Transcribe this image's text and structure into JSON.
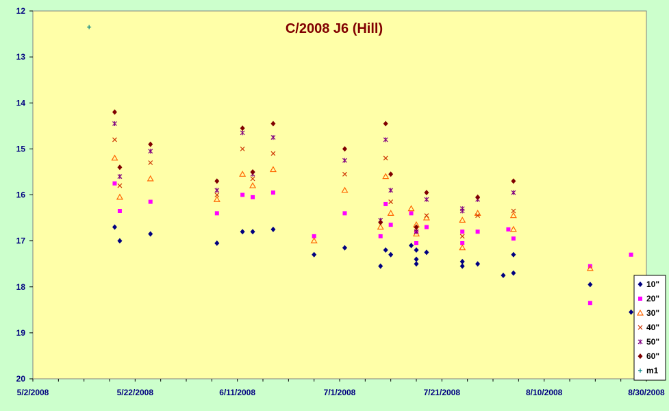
{
  "chart_data": {
    "type": "scatter",
    "title": "C/2008 J6 (Hill)",
    "xlabel": "",
    "ylabel": "",
    "x_ticks": [
      "5/2/2008",
      "5/22/2008",
      "6/11/2008",
      "7/1/2008",
      "7/21/2008",
      "8/10/2008",
      "8/30/2008"
    ],
    "xlim": [
      "2008-05-02",
      "2008-08-30"
    ],
    "ylim": [
      12,
      20
    ],
    "y_reversed": true,
    "y_ticks": [
      12,
      13,
      14,
      15,
      16,
      17,
      18,
      19,
      20
    ],
    "grid": false,
    "legend_position": "right-bottom",
    "plot_background": "#ffffa8",
    "series": [
      {
        "name": "10\"",
        "marker": "diamond",
        "color": "#000080",
        "x": [
          "2008-05-18",
          "2008-05-19",
          "2008-05-25",
          "2008-06-07",
          "2008-06-12",
          "2008-06-14",
          "2008-06-18",
          "2008-06-26",
          "2008-07-02",
          "2008-07-09",
          "2008-07-10",
          "2008-07-11",
          "2008-07-15",
          "2008-07-16",
          "2008-07-16",
          "2008-07-16",
          "2008-07-18",
          "2008-07-25",
          "2008-07-25",
          "2008-07-28",
          "2008-08-02",
          "2008-08-04",
          "2008-08-04",
          "2008-08-19",
          "2008-08-27"
        ],
        "y": [
          16.7,
          17.0,
          16.85,
          17.05,
          16.8,
          16.8,
          16.75,
          17.3,
          17.15,
          17.55,
          17.2,
          17.3,
          17.1,
          17.2,
          17.4,
          17.5,
          17.25,
          17.55,
          17.45,
          17.5,
          17.75,
          17.3,
          17.7,
          17.95,
          18.55
        ]
      },
      {
        "name": "20\"",
        "marker": "square",
        "color": "#ff00ff",
        "x": [
          "2008-05-18",
          "2008-05-19",
          "2008-05-25",
          "2008-06-07",
          "2008-06-12",
          "2008-06-14",
          "2008-06-18",
          "2008-06-26",
          "2008-07-02",
          "2008-07-09",
          "2008-07-10",
          "2008-07-11",
          "2008-07-15",
          "2008-07-16",
          "2008-07-16",
          "2008-07-18",
          "2008-07-25",
          "2008-07-25",
          "2008-07-28",
          "2008-08-03",
          "2008-08-04",
          "2008-08-19",
          "2008-08-19",
          "2008-08-27"
        ],
        "y": [
          15.75,
          16.35,
          16.15,
          16.4,
          16.0,
          16.05,
          15.95,
          16.9,
          16.4,
          16.9,
          16.2,
          16.65,
          16.4,
          16.8,
          17.05,
          16.7,
          17.05,
          16.8,
          16.8,
          16.75,
          16.95,
          17.55,
          18.35,
          17.3
        ]
      },
      {
        "name": "30\"",
        "marker": "triangle",
        "color": "#ff6600",
        "x": [
          "2008-05-18",
          "2008-05-19",
          "2008-05-25",
          "2008-06-07",
          "2008-06-12",
          "2008-06-14",
          "2008-06-18",
          "2008-06-26",
          "2008-07-02",
          "2008-07-09",
          "2008-07-10",
          "2008-07-11",
          "2008-07-15",
          "2008-07-16",
          "2008-07-16",
          "2008-07-18",
          "2008-07-25",
          "2008-07-25",
          "2008-07-28",
          "2008-08-04",
          "2008-08-04",
          "2008-08-19"
        ],
        "y": [
          15.2,
          16.05,
          15.65,
          16.1,
          15.55,
          15.8,
          15.45,
          17.0,
          15.9,
          16.7,
          15.6,
          16.4,
          16.3,
          16.65,
          16.85,
          16.5,
          16.55,
          17.15,
          16.4,
          16.45,
          16.75,
          17.6
        ]
      },
      {
        "name": "40\"",
        "marker": "x",
        "color": "#cc3300",
        "x": [
          "2008-05-18",
          "2008-05-19",
          "2008-05-25",
          "2008-06-07",
          "2008-06-12",
          "2008-06-14",
          "2008-06-18",
          "2008-07-02",
          "2008-07-10",
          "2008-07-11",
          "2008-07-16",
          "2008-07-18",
          "2008-07-25",
          "2008-07-28",
          "2008-08-04"
        ],
        "y": [
          14.8,
          15.8,
          15.3,
          16.0,
          15.0,
          15.65,
          15.1,
          15.55,
          15.2,
          16.15,
          16.75,
          16.45,
          16.9,
          16.45,
          16.35
        ]
      },
      {
        "name": "50\"",
        "marker": "star",
        "color": "#800080",
        "x": [
          "2008-05-18",
          "2008-05-19",
          "2008-05-25",
          "2008-06-07",
          "2008-06-12",
          "2008-06-14",
          "2008-06-18",
          "2008-07-02",
          "2008-07-09",
          "2008-07-10",
          "2008-07-11",
          "2008-07-16",
          "2008-07-18",
          "2008-07-25",
          "2008-07-25",
          "2008-07-28",
          "2008-08-04"
        ],
        "y": [
          14.45,
          15.6,
          15.05,
          15.9,
          14.65,
          15.55,
          14.75,
          15.25,
          16.55,
          14.8,
          15.9,
          16.8,
          16.1,
          16.3,
          16.35,
          16.1,
          15.95
        ]
      },
      {
        "name": "60\"",
        "marker": "diamond",
        "color": "#800000",
        "x": [
          "2008-05-18",
          "2008-05-19",
          "2008-05-25",
          "2008-06-07",
          "2008-06-12",
          "2008-06-14",
          "2008-06-18",
          "2008-07-02",
          "2008-07-09",
          "2008-07-10",
          "2008-07-11",
          "2008-07-16",
          "2008-07-18",
          "2008-07-28",
          "2008-08-04"
        ],
        "y": [
          14.2,
          15.4,
          14.9,
          15.7,
          14.55,
          15.5,
          14.45,
          15.0,
          16.6,
          14.45,
          15.55,
          16.7,
          15.95,
          16.05,
          15.7
        ]
      },
      {
        "name": "m1",
        "marker": "plus",
        "color": "#008080",
        "x": [
          "2008-05-13"
        ],
        "y": [
          12.35
        ]
      }
    ]
  }
}
